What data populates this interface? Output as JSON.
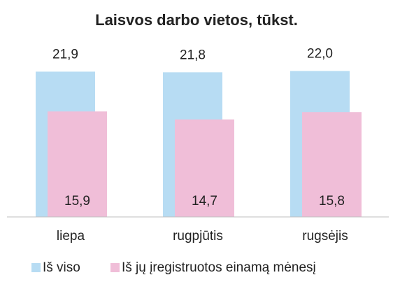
{
  "chart_data": {
    "type": "bar",
    "title": "Laisvos darbo vietos, tūkst.",
    "categories": [
      "liepa",
      "rugpjūtis",
      "rugsėjis"
    ],
    "series": [
      {
        "name": "Iš viso",
        "color": "#b7dcf3",
        "values": [
          21.9,
          21.8,
          22.0
        ],
        "value_labels": [
          "21,9",
          "21,8",
          "22,0"
        ]
      },
      {
        "name": "Iš jų įregistruotos einamą mėnesį",
        "color": "#f0bed8",
        "values": [
          15.9,
          14.7,
          15.8
        ],
        "value_labels": [
          "15,9",
          "14,7",
          "15,8"
        ]
      }
    ],
    "ylim": [
      0,
      25
    ]
  }
}
